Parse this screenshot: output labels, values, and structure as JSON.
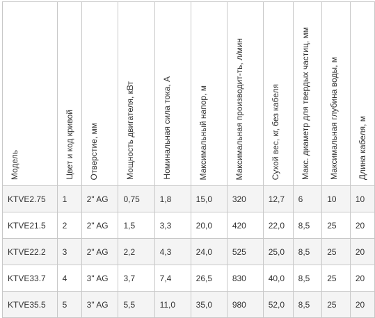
{
  "table": {
    "headers": [
      "Модель",
      "Цвет и код кривой",
      "Отверстие, мм",
      "Мощность двигателя, кВт",
      "Номинальная сила тока, А",
      "Максимальный напор, м",
      "Максимальная производит-ть, л/мин",
      "Сухой вес, кг, без кабеля",
      "Макс. диаметр для твердых частиц, мм",
      "Максимальная глубина воды, м",
      "Длина кабеля, м"
    ],
    "rows": [
      [
        "KTVE2.75",
        "1",
        "2\" AG",
        "0,75",
        "1,8",
        "15,0",
        "320",
        "12,7",
        "6",
        "10",
        "10"
      ],
      [
        "KTVE21.5",
        "2",
        "2\" AG",
        "1,5",
        "3,3",
        "20,0",
        "420",
        "22,0",
        "8,5",
        "25",
        "20"
      ],
      [
        "KTVE22.2",
        "3",
        "2\" AG",
        "2,2",
        "4,3",
        "24,0",
        "525",
        "25,0",
        "8,5",
        "25",
        "20"
      ],
      [
        "KTVE33.7",
        "4",
        "3\" AG",
        "3,7",
        "7,4",
        "26,5",
        "830",
        "40,0",
        "8,5",
        "25",
        "20"
      ],
      [
        "KTVE35.5",
        "5",
        "3\" AG",
        "5,5",
        "11,0",
        "35,0",
        "980",
        "52,0",
        "8,5",
        "25",
        "20"
      ]
    ]
  }
}
